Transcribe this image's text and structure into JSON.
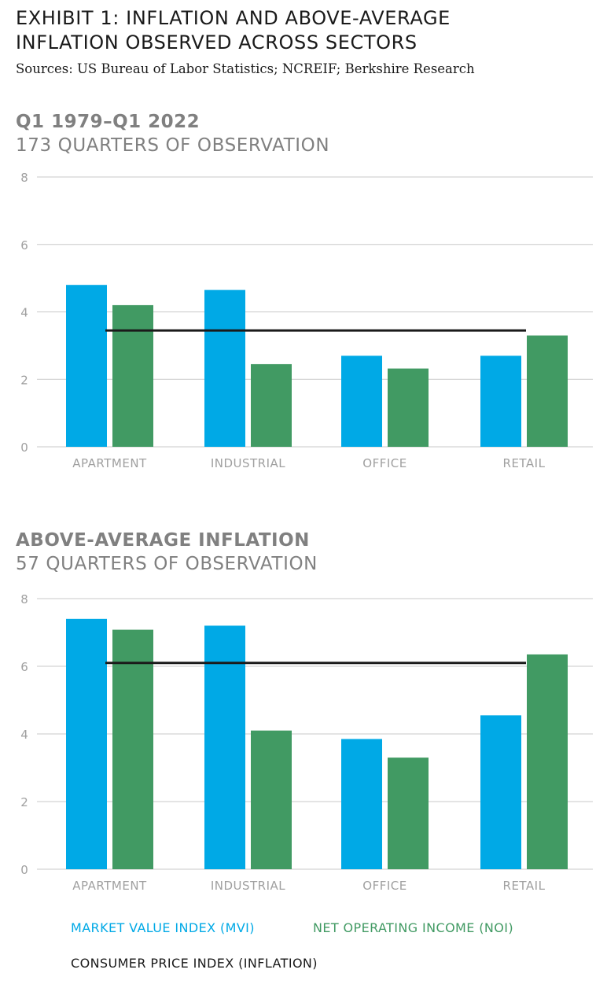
{
  "header": {
    "title_line1": "EXHIBIT 1: INFLATION AND ABOVE-AVERAGE",
    "title_line2": "INFLATION OBSERVED ACROSS SECTORS",
    "sources": "Sources: US Bureau of Labor Statistics; NCREIF; Berkshire Research"
  },
  "colors": {
    "mvi": "#00a9e6",
    "noi": "#419a63",
    "inflation": "#1a1a1a",
    "axis_text": "#a0a0a0",
    "grid": "#c8c8c8"
  },
  "chart_data": [
    {
      "type": "bar",
      "title": "Q1 1979–Q1 2022",
      "subtitle": "173 QUARTERS OF OBSERVATION",
      "categories": [
        "APARTMENT",
        "INDUSTRIAL",
        "OFFICE",
        "RETAIL"
      ],
      "series": [
        {
          "name": "MARKET VALUE INDEX (MVI)",
          "values": [
            4.8,
            4.65,
            2.7,
            2.7
          ]
        },
        {
          "name": "NET OPERATING INCOME (NOI)",
          "values": [
            4.2,
            2.45,
            2.32,
            3.3
          ]
        }
      ],
      "reference_line": {
        "name": "CONSUMER PRICE INDEX (INFLATION)",
        "value": 3.45
      },
      "ylim": [
        0,
        8
      ],
      "yticks": [
        "0",
        "2",
        "4",
        "6",
        "8"
      ],
      "grid": true
    },
    {
      "type": "bar",
      "title": "ABOVE-AVERAGE INFLATION",
      "subtitle": "57 QUARTERS OF OBSERVATION",
      "categories": [
        "APARTMENT",
        "INDUSTRIAL",
        "OFFICE",
        "RETAIL"
      ],
      "series": [
        {
          "name": "MARKET VALUE INDEX (MVI)",
          "values": [
            7.4,
            7.2,
            3.85,
            4.55
          ]
        },
        {
          "name": "NET OPERATING INCOME (NOI)",
          "values": [
            7.08,
            4.1,
            3.3,
            6.35
          ]
        }
      ],
      "reference_line": {
        "name": "CONSUMER PRICE INDEX (INFLATION)",
        "value": 6.1
      },
      "ylim": [
        0,
        8
      ],
      "yticks": [
        "0",
        "2",
        "4",
        "6",
        "8"
      ],
      "grid": true
    }
  ],
  "legend": {
    "mvi": "MARKET VALUE INDEX (MVI)",
    "noi": "NET OPERATING INCOME (NOI)",
    "inflation": "CONSUMER PRICE INDEX (INFLATION)"
  }
}
